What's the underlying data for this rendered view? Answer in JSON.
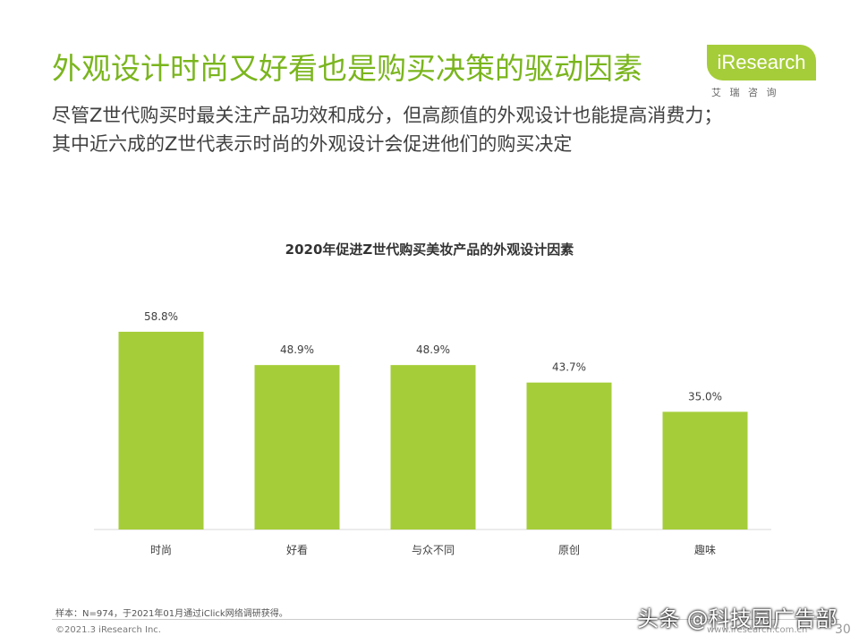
{
  "slide": {
    "title": "外观设计时尚又好看也是购买决策的驱动因素",
    "subtitle": [
      "尽管Z世代购买时最关注产品功效和成分，但高颜值的外观设计也能提高消费力；",
      "其中近六成的Z世代表示时尚的外观设计会促进他们的购买决定"
    ],
    "logo": "iResearch",
    "logo_cn": "艾 瑞 咨 询",
    "note": "样本：N=974，于2021年01月通过iClick网络调研获得。",
    "copyright": "©2021.3 iResearch Inc.",
    "website": "www.iresearch.com.cn",
    "page": "30",
    "watermark": "头条 @科技园广告部"
  },
  "chart_data": {
    "type": "bar",
    "title": "2020年促进Z世代购买美妆产品的外观设计因素",
    "categories": [
      "时尚",
      "好看",
      "与众不同",
      "原创",
      "趣味"
    ],
    "values": [
      58.8,
      48.9,
      48.9,
      43.7,
      35.0
    ],
    "value_labels": [
      "58.8%",
      "48.9%",
      "48.9%",
      "43.7%",
      "35.0%"
    ],
    "color": "#a5cd39"
  }
}
